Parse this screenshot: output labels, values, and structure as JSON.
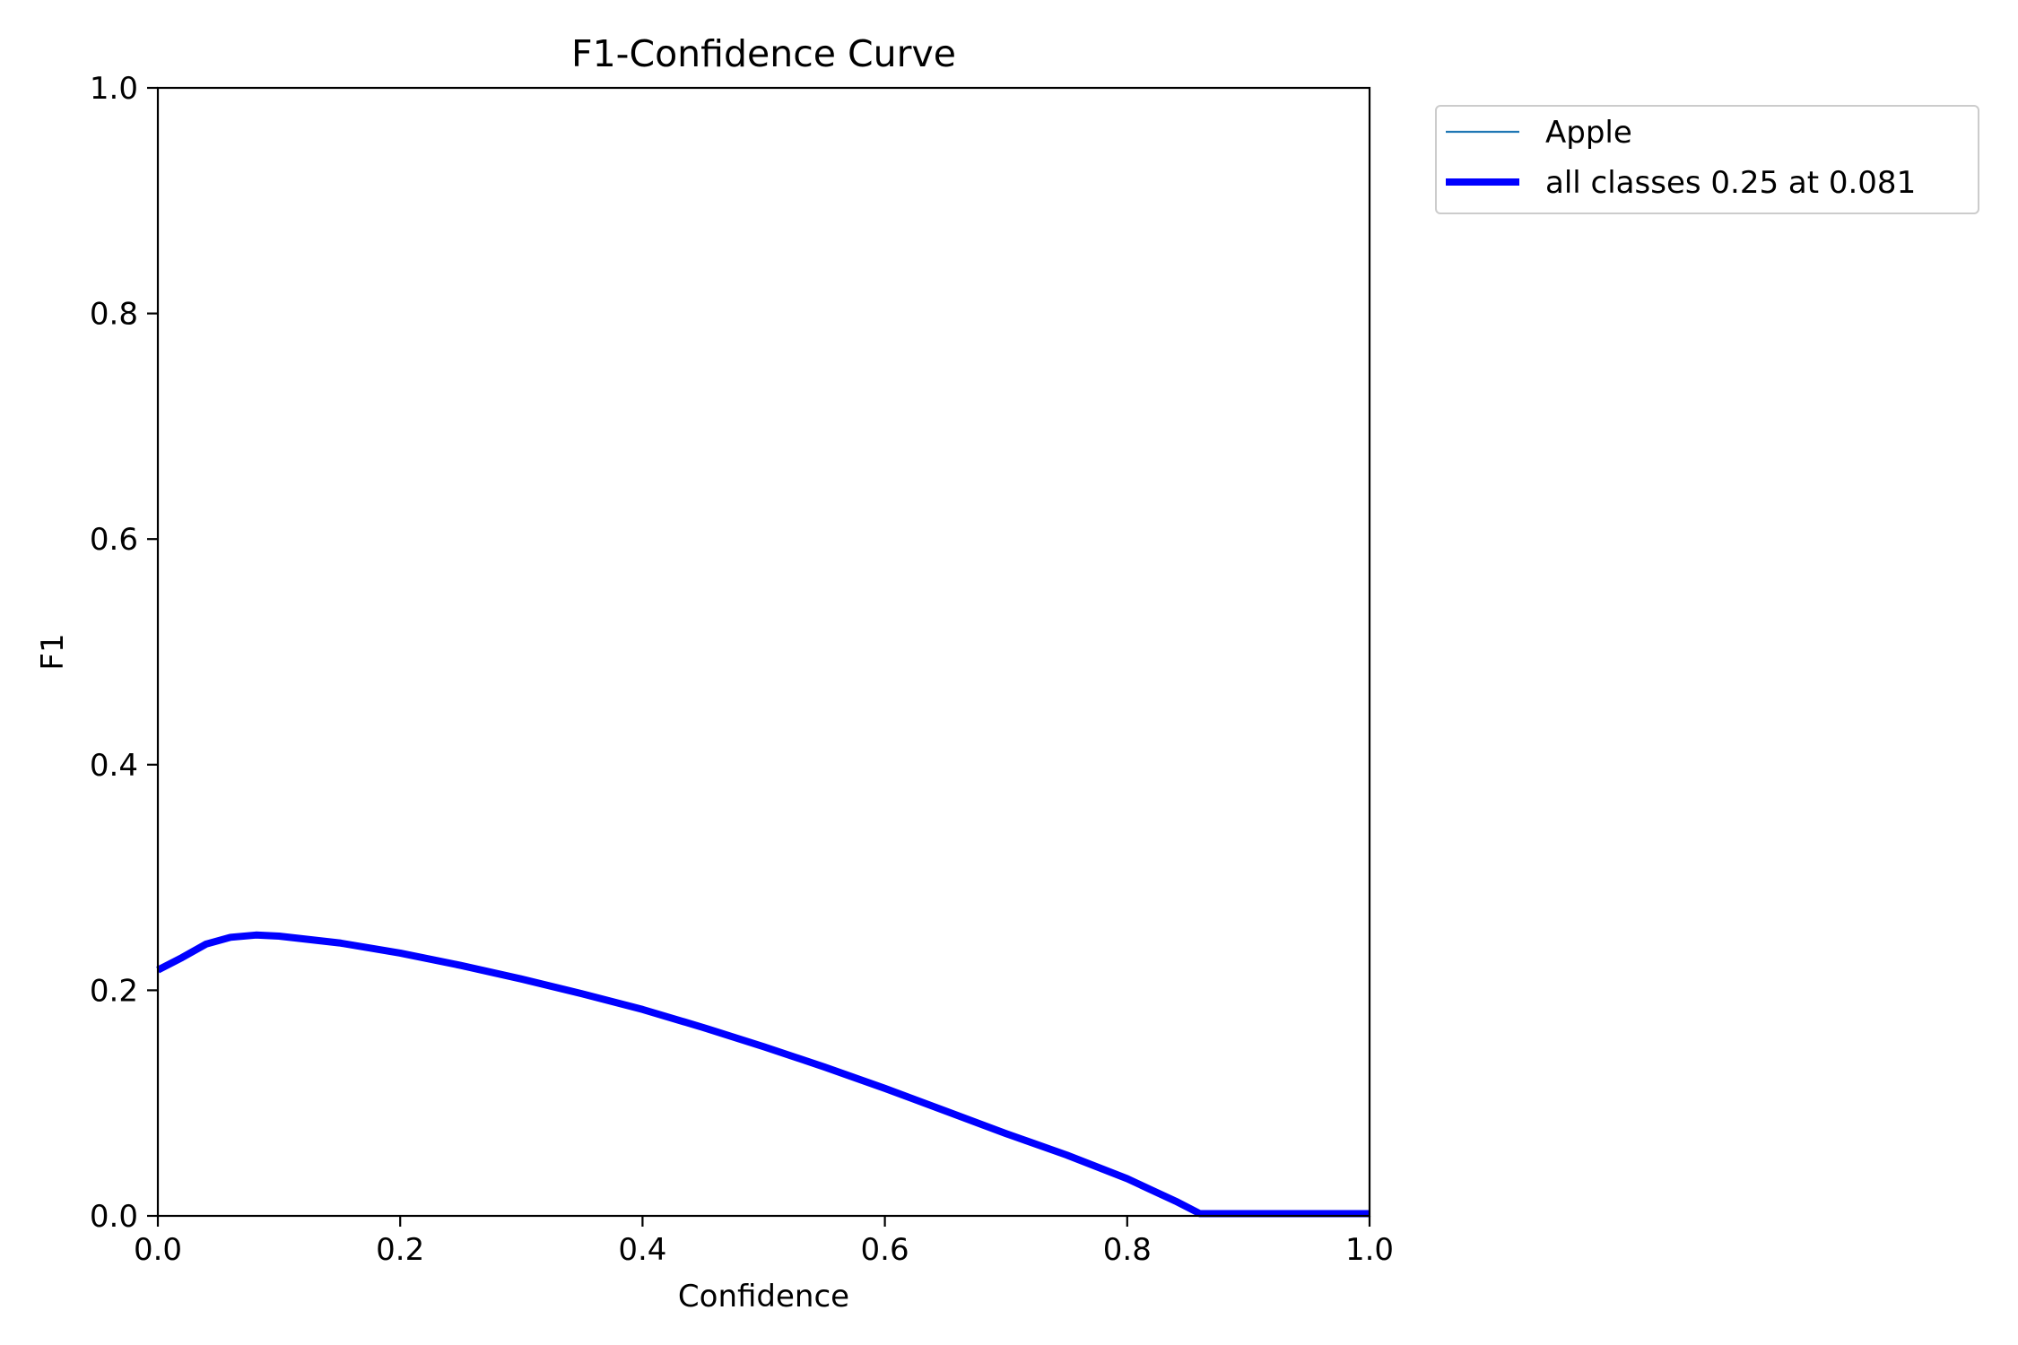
{
  "chart_data": {
    "type": "line",
    "title": "F1-Confidence Curve",
    "xlabel": "Confidence",
    "ylabel": "F1",
    "xlim": [
      0,
      1
    ],
    "ylim": [
      0,
      1
    ],
    "xticks": [
      0.0,
      0.2,
      0.4,
      0.6,
      0.8,
      1.0
    ],
    "xtick_labels": [
      "0.0",
      "0.2",
      "0.4",
      "0.6",
      "0.8",
      "1.0"
    ],
    "yticks": [
      0.0,
      0.2,
      0.4,
      0.6,
      0.8,
      1.0
    ],
    "ytick_labels": [
      "0.0",
      "0.2",
      "0.4",
      "0.6",
      "0.8",
      "1.0"
    ],
    "grid": false,
    "legend_placement": "outside-upper-right",
    "series": [
      {
        "name": "Apple",
        "color": "#1f77b4",
        "style": "thin",
        "x": [
          0.0,
          0.02,
          0.04,
          0.06,
          0.081,
          0.1,
          0.15,
          0.2,
          0.25,
          0.3,
          0.35,
          0.4,
          0.45,
          0.5,
          0.55,
          0.6,
          0.65,
          0.7,
          0.75,
          0.8,
          0.82,
          0.84,
          0.86,
          0.9,
          0.95,
          1.0
        ],
        "y": [
          0.218,
          0.229,
          0.241,
          0.247,
          0.249,
          0.248,
          0.242,
          0.233,
          0.222,
          0.21,
          0.197,
          0.183,
          0.167,
          0.15,
          0.132,
          0.113,
          0.093,
          0.073,
          0.054,
          0.033,
          0.023,
          0.013,
          0.002,
          0.002,
          0.002,
          0.002
        ]
      },
      {
        "name": "all classes 0.25 at 0.081",
        "color": "#0000ff",
        "style": "thick",
        "x": [
          0.0,
          0.02,
          0.04,
          0.06,
          0.081,
          0.1,
          0.15,
          0.2,
          0.25,
          0.3,
          0.35,
          0.4,
          0.45,
          0.5,
          0.55,
          0.6,
          0.65,
          0.7,
          0.75,
          0.8,
          0.82,
          0.84,
          0.86,
          0.9,
          0.95,
          1.0
        ],
        "y": [
          0.218,
          0.229,
          0.241,
          0.247,
          0.249,
          0.248,
          0.242,
          0.233,
          0.222,
          0.21,
          0.197,
          0.183,
          0.167,
          0.15,
          0.132,
          0.113,
          0.093,
          0.073,
          0.054,
          0.033,
          0.023,
          0.013,
          0.002,
          0.002,
          0.002,
          0.002
        ]
      }
    ]
  }
}
